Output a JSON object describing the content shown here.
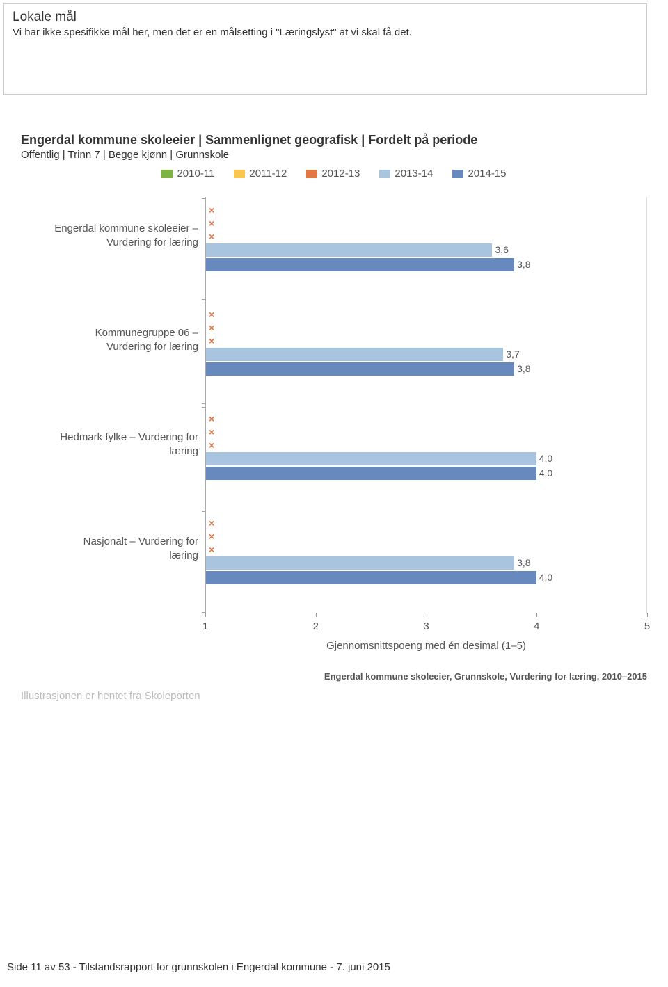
{
  "info_box": {
    "title": "Lokale mål",
    "body": "Vi har ikke spesifikke mål her, men det er en målsetting i \"Læringslyst\" at vi skal få det."
  },
  "section": {
    "title": "Engerdal kommune skoleeier | Sammenlignet geografisk | Fordelt på periode",
    "sub": "Offentlig | Trinn 7 | Begge kjønn | Grunnskole"
  },
  "chart": {
    "legend": [
      {
        "label": "2010-11",
        "color": "#7cb342"
      },
      {
        "label": "2011-12",
        "color": "#f9c74f"
      },
      {
        "label": "2012-13",
        "color": "#e57541"
      },
      {
        "label": "2013-14",
        "color": "#a9c4de"
      },
      {
        "label": "2014-15",
        "color": "#6889be"
      }
    ],
    "x_axis": {
      "min": 1,
      "max": 5,
      "ticks": [
        1,
        2,
        3,
        4,
        5
      ],
      "title": "Gjennomsnittspoeng med én desimal (1–5)"
    },
    "no_data_marker": "×",
    "no_data_color": "#e57541",
    "groups": [
      {
        "label_line1": "Engerdal kommune skoleeier –",
        "label_line2": "Vurdering for læring",
        "series": [
          {
            "period": "2010-11",
            "value": null
          },
          {
            "period": "2011-12",
            "value": null
          },
          {
            "period": "2012-13",
            "value": null
          },
          {
            "period": "2013-14",
            "value": 3.6,
            "label": "3,6",
            "color": "#a9c4de"
          },
          {
            "period": "2014-15",
            "value": 3.8,
            "label": "3,8",
            "color": "#6889be"
          }
        ]
      },
      {
        "label_line1": "Kommunegruppe 06 –",
        "label_line2": "Vurdering for læring",
        "series": [
          {
            "period": "2010-11",
            "value": null
          },
          {
            "period": "2011-12",
            "value": null
          },
          {
            "period": "2012-13",
            "value": null
          },
          {
            "period": "2013-14",
            "value": 3.7,
            "label": "3,7",
            "color": "#a9c4de"
          },
          {
            "period": "2014-15",
            "value": 3.8,
            "label": "3,8",
            "color": "#6889be"
          }
        ]
      },
      {
        "label_line1": "Hedmark fylke – Vurdering for",
        "label_line2": "læring",
        "series": [
          {
            "period": "2010-11",
            "value": null
          },
          {
            "period": "2011-12",
            "value": null
          },
          {
            "period": "2012-13",
            "value": null
          },
          {
            "period": "2013-14",
            "value": 4.0,
            "label": "4,0",
            "color": "#a9c4de"
          },
          {
            "period": "2014-15",
            "value": 4.0,
            "label": "4,0",
            "color": "#6889be"
          }
        ]
      },
      {
        "label_line1": "Nasjonalt – Vurdering for",
        "label_line2": "læring",
        "series": [
          {
            "period": "2010-11",
            "value": null
          },
          {
            "period": "2011-12",
            "value": null
          },
          {
            "period": "2012-13",
            "value": null
          },
          {
            "period": "2013-14",
            "value": 3.8,
            "label": "3,8",
            "color": "#a9c4de"
          },
          {
            "period": "2014-15",
            "value": 4.0,
            "label": "4,0",
            "color": "#6889be"
          }
        ]
      }
    ],
    "caption": "Engerdal kommune skoleeier, Grunnskole, Vurdering for læring, 2010–2015"
  },
  "source_note": "Illustrasjonen er hentet fra Skoleporten",
  "footer": "Side 11 av 53 - Tilstandsrapport for grunnskolen i Engerdal kommune - 7. juni 2015"
}
